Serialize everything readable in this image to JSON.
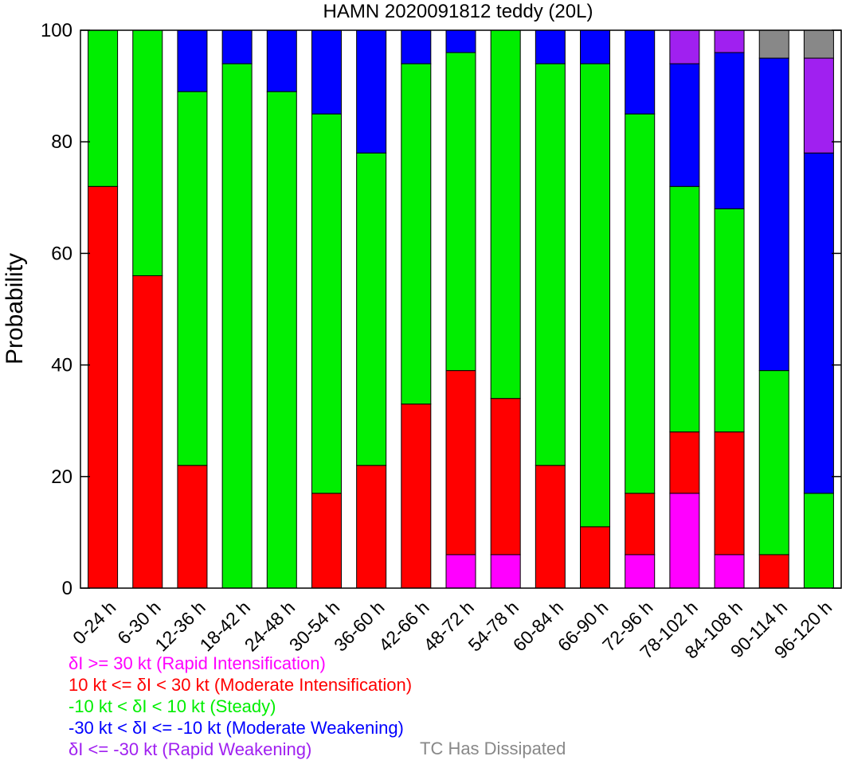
{
  "chart_data": {
    "type": "bar",
    "stacked": true,
    "title": "HAMN 2020091812 teddy (20L)",
    "ylabel": "Probability",
    "xlabel": "",
    "ylim": [
      0,
      100
    ],
    "yticks": [
      0,
      20,
      40,
      60,
      80,
      100
    ],
    "grid": false,
    "categories": [
      "0-24 h",
      "6-30 h",
      "12-36 h",
      "18-42 h",
      "24-48 h",
      "30-54 h",
      "36-60 h",
      "42-66 h",
      "48-72 h",
      "54-78 h",
      "60-84 h",
      "66-90 h",
      "72-96 h",
      "78-102 h",
      "84-108 h",
      "90-114 h",
      "96-120 h"
    ],
    "series": [
      {
        "name": "δI >= 30 kt (Rapid Intensification)",
        "color": "#ff00ff",
        "values": [
          0,
          0,
          0,
          0,
          0,
          0,
          0,
          0,
          6,
          6,
          0,
          0,
          6,
          17,
          6,
          0,
          0
        ]
      },
      {
        "name": "10 kt <= δI < 30 kt (Moderate Intensification)",
        "color": "#ff0000",
        "values": [
          72,
          56,
          22,
          0,
          0,
          17,
          22,
          33,
          33,
          28,
          22,
          11,
          11,
          11,
          22,
          6,
          0
        ]
      },
      {
        "name": "-10 kt < δI < 10 kt (Steady)",
        "color": "#00ee00",
        "values": [
          28,
          44,
          67,
          94,
          89,
          68,
          56,
          61,
          57,
          66,
          72,
          83,
          68,
          44,
          40,
          33,
          17
        ]
      },
      {
        "name": "-30 kt < δI <= -10 kt (Moderate Weakening)",
        "color": "#0000ff",
        "values": [
          0,
          0,
          11,
          6,
          11,
          15,
          22,
          6,
          4,
          0,
          6,
          6,
          15,
          22,
          28,
          56,
          61
        ]
      },
      {
        "name": "δI <= -30 kt (Rapid Weakening)",
        "color": "#a020f0",
        "values": [
          0,
          0,
          0,
          0,
          0,
          0,
          0,
          0,
          0,
          0,
          0,
          0,
          0,
          6,
          4,
          0,
          17
        ]
      },
      {
        "name": "TC Has Dissipated",
        "color": "#888888",
        "values": [
          0,
          0,
          0,
          0,
          0,
          0,
          0,
          0,
          0,
          0,
          0,
          0,
          0,
          0,
          0,
          5,
          5
        ]
      }
    ]
  },
  "legend": {
    "ri": "δI >= 30 kt (Rapid Intensification)",
    "mi": "10 kt <= δI < 30 kt (Moderate Intensification)",
    "steady": "-10 kt < δI < 10 kt (Steady)",
    "mw": "-30 kt < δI <= -10 kt (Moderate Weakening)",
    "rw": "δI <= -30 kt (Rapid Weakening)",
    "dissipated": "TC Has Dissipated"
  }
}
